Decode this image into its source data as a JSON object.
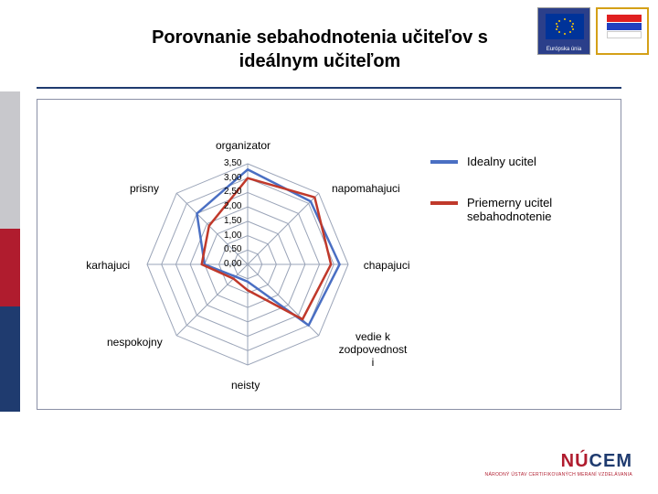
{
  "title": "Porovnanie sebahodnotenia učiteľov s ideálnym učiteľom",
  "logos": {
    "eu_caption": "Európska únia",
    "nucem_main": "NÚCEM",
    "nucem_sub": "NÁRODNÝ ÚSTAV CERTIFIKOVANÝCH MERANÍ VZDELÁVANIA"
  },
  "chart": {
    "type": "radar",
    "axes": [
      "organizator",
      "napomahajuci",
      "chapajuci",
      "vedie k zodpovednosti",
      "neisty",
      "nespokojny",
      "karhajuci",
      "prisny"
    ],
    "scale_labels": [
      "0,00",
      "0,50",
      "1,00",
      "1,50",
      "2,00",
      "2,50",
      "3,00",
      "3,50"
    ],
    "scale_max": 3.5,
    "rings": 7,
    "grid_color": "#9aa4b8",
    "background_color": "#ffffff",
    "label_fontsize": 12,
    "series": [
      {
        "name": "Idealny ucitel",
        "color": "#4a6fc3",
        "line_width": 2.5,
        "values": [
          3.3,
          3.1,
          3.2,
          3.0,
          0.6,
          0.6,
          1.5,
          2.5
        ]
      },
      {
        "name": "Priemerny ucitel sebahodnotenie",
        "color": "#c0392b",
        "line_width": 2.5,
        "values": [
          3.0,
          3.3,
          2.9,
          2.7,
          0.9,
          0.7,
          1.6,
          1.9
        ]
      }
    ]
  }
}
